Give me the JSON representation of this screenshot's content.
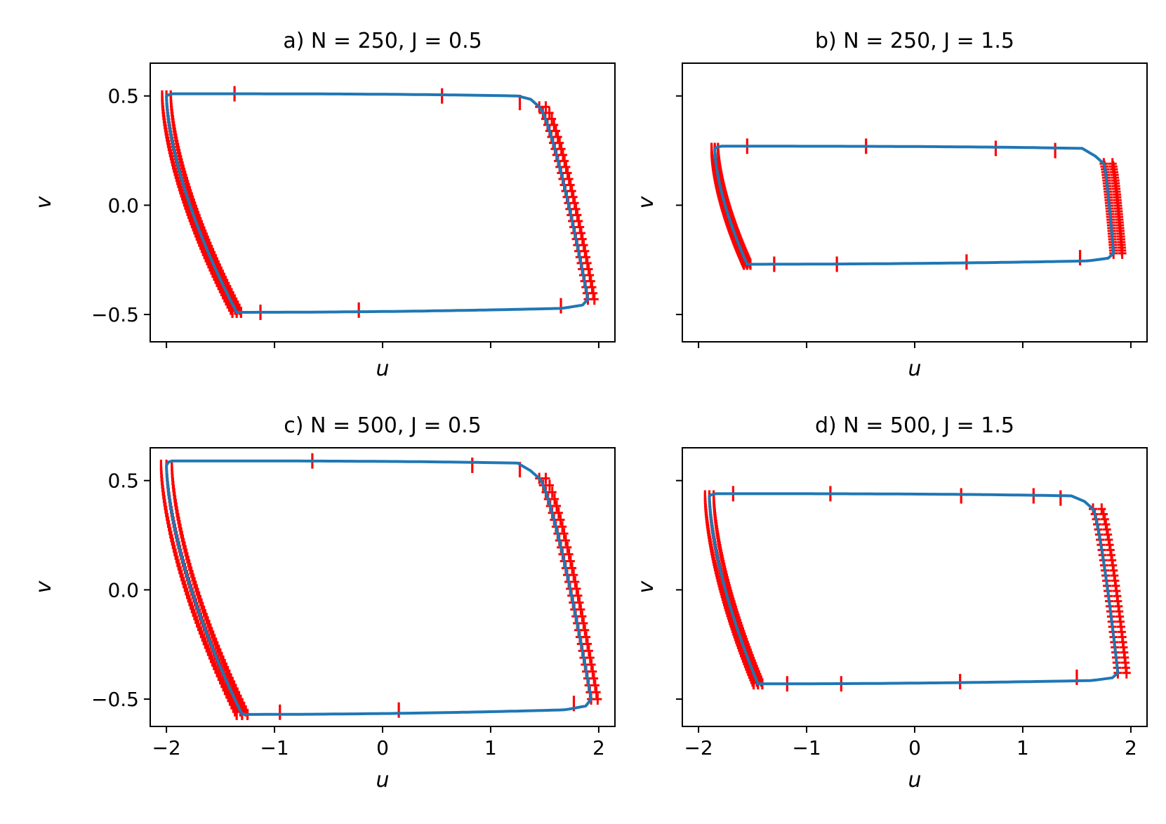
{
  "chart_data": [
    {
      "type": "line",
      "title": "a) N = 250, J = 0.5",
      "xlabel": "u",
      "ylabel": "v",
      "xlim": [
        -2.15,
        2.15
      ],
      "ylim": [
        -0.625,
        0.65
      ],
      "xticks": [
        -2,
        -1,
        0,
        1,
        2
      ],
      "yticks": [
        -0.5,
        0.0,
        0.5
      ],
      "xtick_labels": [
        "",
        "",
        "",
        "",
        ""
      ],
      "ytick_labels": [
        "−0.5",
        "0.0",
        "0.5"
      ],
      "colors": {
        "curve": "#1f77b4",
        "markers": "#ff0000"
      },
      "cycle": {
        "left_top": [
          -2.0,
          0.5
        ],
        "right_top": [
          1.25,
          0.5
        ],
        "right_bottom": [
          1.9,
          -0.43
        ],
        "left_bottom": [
          -1.35,
          -0.49
        ],
        "top_y": 0.51,
        "bottom_y": -0.49
      },
      "left_band_width": 0.08,
      "right_band_width": 0.06,
      "sparse_markers": [
        [
          -1.37,
          0.51
        ],
        [
          0.55,
          0.5
        ],
        [
          1.27,
          0.47
        ],
        [
          -1.13,
          -0.49
        ],
        [
          -0.22,
          -0.48
        ],
        [
          1.65,
          -0.46
        ]
      ]
    },
    {
      "type": "line",
      "title": "b) N = 250, J = 1.5",
      "xlabel": "u",
      "ylabel": "v",
      "xlim": [
        -2.15,
        2.15
      ],
      "ylim": [
        -0.625,
        0.65
      ],
      "xticks": [
        -2,
        -1,
        0,
        1,
        2
      ],
      "yticks": [
        -0.5,
        0.0,
        0.5
      ],
      "xtick_labels": [
        "",
        "",
        "",
        "",
        ""
      ],
      "ytick_labels": [
        "",
        "",
        ""
      ],
      "colors": {
        "curve": "#1f77b4",
        "markers": "#ff0000"
      },
      "cycle": {
        "left_top": [
          -1.85,
          0.26
        ],
        "right_top": [
          1.55,
          0.24
        ],
        "right_bottom": [
          1.84,
          -0.22
        ],
        "left_bottom": [
          -1.55,
          -0.27
        ],
        "top_y": 0.27,
        "bottom_y": -0.27
      },
      "left_band_width": 0.06,
      "right_band_width": 0.08,
      "sparse_markers": [
        [
          -1.55,
          0.27
        ],
        [
          -0.45,
          0.27
        ],
        [
          0.75,
          0.26
        ],
        [
          1.3,
          0.25
        ],
        [
          -1.3,
          -0.27
        ],
        [
          -0.72,
          -0.27
        ],
        [
          0.48,
          -0.26
        ],
        [
          1.53,
          -0.24
        ]
      ]
    },
    {
      "type": "line",
      "title": "c) N = 500, J = 0.5",
      "xlabel": "u",
      "ylabel": "v",
      "xlim": [
        -2.15,
        2.15
      ],
      "ylim": [
        -0.625,
        0.65
      ],
      "xticks": [
        -2,
        -1,
        0,
        1,
        2
      ],
      "yticks": [
        -0.5,
        0.0,
        0.5
      ],
      "xtick_labels": [
        "−2",
        "−1",
        "0",
        "1",
        "2"
      ],
      "ytick_labels": [
        "−0.5",
        "0.0",
        "0.5"
      ],
      "colors": {
        "curve": "#1f77b4",
        "markers": "#ff0000"
      },
      "cycle": {
        "left_top": [
          -2.0,
          0.57
        ],
        "right_top": [
          1.25,
          0.56
        ],
        "right_bottom": [
          1.93,
          -0.5
        ],
        "left_bottom": [
          -1.3,
          -0.57
        ],
        "top_y": 0.59,
        "bottom_y": -0.57
      },
      "left_band_width": 0.1,
      "right_band_width": 0.06,
      "sparse_markers": [
        [
          -0.65,
          0.59
        ],
        [
          0.83,
          0.57
        ],
        [
          1.27,
          0.55
        ],
        [
          -0.95,
          -0.56
        ],
        [
          0.15,
          -0.55
        ],
        [
          1.77,
          -0.52
        ]
      ]
    },
    {
      "type": "line",
      "title": "d) N = 500, J = 1.5",
      "xlabel": "u",
      "ylabel": "v",
      "xlim": [
        -2.15,
        2.15
      ],
      "ylim": [
        -0.625,
        0.65
      ],
      "xticks": [
        -2,
        -1,
        0,
        1,
        2
      ],
      "yticks": [
        -0.5,
        0.0,
        0.5
      ],
      "xtick_labels": [
        "−2",
        "−1",
        "0",
        "1",
        "2"
      ],
      "ytick_labels": [
        "",
        "",
        ""
      ],
      "colors": {
        "curve": "#1f77b4",
        "markers": "#ff0000"
      },
      "cycle": {
        "left_top": [
          -1.9,
          0.43
        ],
        "right_top": [
          1.45,
          0.42
        ],
        "right_bottom": [
          1.88,
          -0.38
        ],
        "left_bottom": [
          -1.45,
          -0.43
        ],
        "top_y": 0.44,
        "bottom_y": -0.43
      },
      "left_band_width": 0.08,
      "right_band_width": 0.08,
      "sparse_markers": [
        [
          -1.68,
          0.44
        ],
        [
          -0.78,
          0.44
        ],
        [
          0.43,
          0.43
        ],
        [
          1.1,
          0.43
        ],
        [
          1.35,
          0.42
        ],
        [
          -1.18,
          -0.43
        ],
        [
          -0.68,
          -0.43
        ],
        [
          0.42,
          -0.42
        ],
        [
          1.5,
          -0.4
        ]
      ]
    }
  ]
}
